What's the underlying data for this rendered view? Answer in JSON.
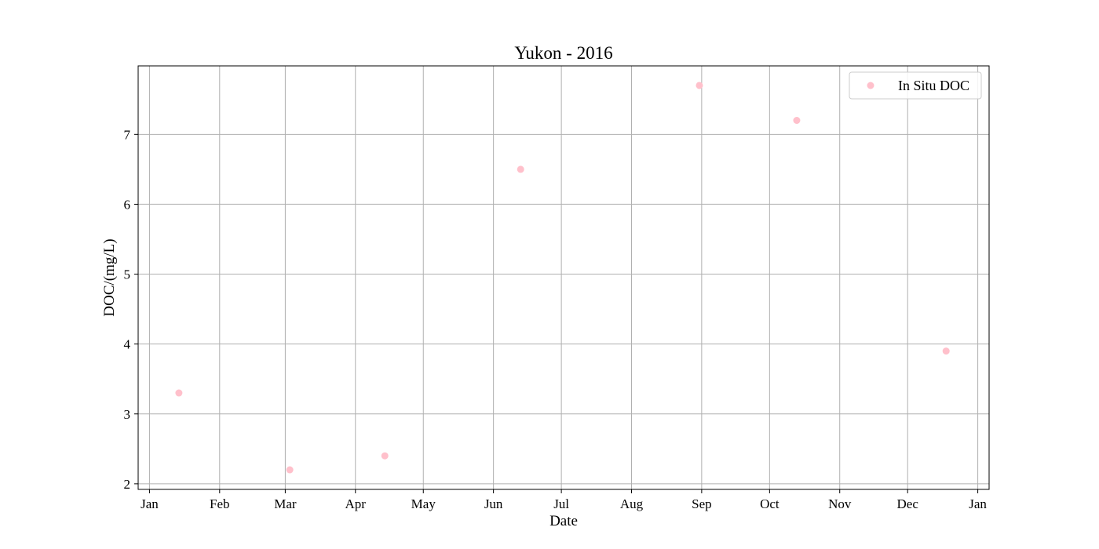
{
  "chart_data": {
    "type": "scatter",
    "title": "Yukon - 2016",
    "xlabel": "Date",
    "ylabel": "DOC/(mg/L)",
    "grid": true,
    "legend_position": "top-right",
    "xlim": [
      "2015-12-27",
      "2017-01-06"
    ],
    "ylim": [
      1.92,
      7.98
    ],
    "x_ticks": [
      {
        "date": "2016-01-01",
        "label": "Jan"
      },
      {
        "date": "2016-02-01",
        "label": "Feb"
      },
      {
        "date": "2016-03-01",
        "label": "Mar"
      },
      {
        "date": "2016-04-01",
        "label": "Apr"
      },
      {
        "date": "2016-05-01",
        "label": "May"
      },
      {
        "date": "2016-06-01",
        "label": "Jun"
      },
      {
        "date": "2016-07-01",
        "label": "Jul"
      },
      {
        "date": "2016-08-01",
        "label": "Aug"
      },
      {
        "date": "2016-09-01",
        "label": "Sep"
      },
      {
        "date": "2016-10-01",
        "label": "Oct"
      },
      {
        "date": "2016-11-01",
        "label": "Nov"
      },
      {
        "date": "2016-12-01",
        "label": "Dec"
      },
      {
        "date": "2017-01-01",
        "label": "Jan"
      }
    ],
    "y_ticks": [
      2,
      3,
      4,
      5,
      6,
      7
    ],
    "series": [
      {
        "name": "In Situ DOC",
        "color": "#ffc0cb",
        "marker": "circle",
        "points": [
          {
            "x": "2016-01-14",
            "y": 3.3
          },
          {
            "x": "2016-03-03",
            "y": 2.2
          },
          {
            "x": "2016-04-14",
            "y": 2.4
          },
          {
            "x": "2016-06-13",
            "y": 6.5
          },
          {
            "x": "2016-08-31",
            "y": 7.7
          },
          {
            "x": "2016-10-13",
            "y": 7.2
          },
          {
            "x": "2016-12-18",
            "y": 3.9
          }
        ]
      }
    ]
  }
}
